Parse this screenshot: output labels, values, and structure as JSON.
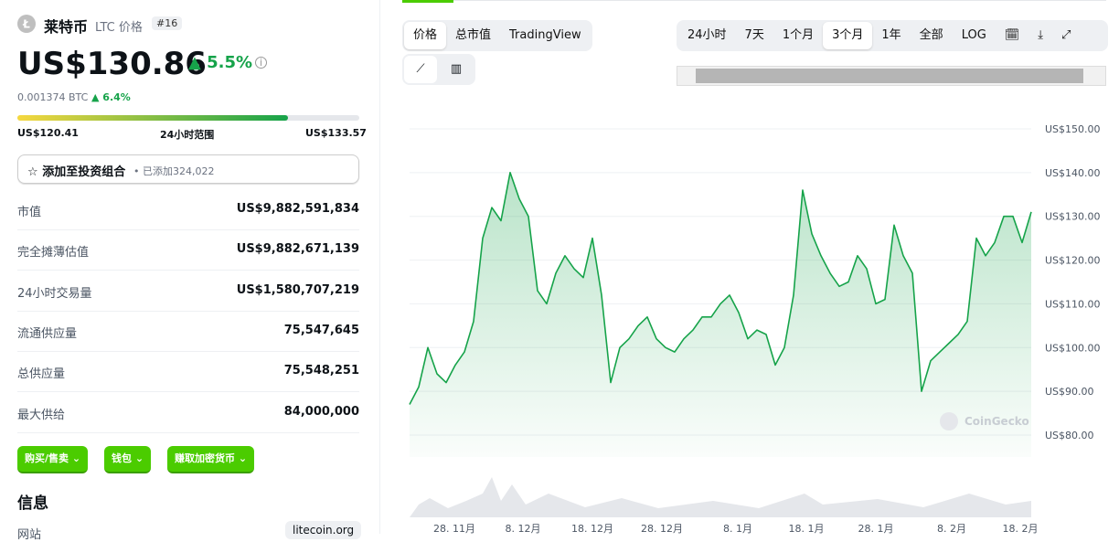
{
  "coin": {
    "name": "莱特币",
    "symbol": "LTC 价格",
    "rank": "#16",
    "price": "US$130.86",
    "change": "5.5%",
    "btc_price": "0.001374 BTC",
    "btc_change": "6.4%",
    "range": {
      "low": "US$120.41",
      "label": "24小时范围",
      "high": "US$133.57"
    },
    "portfolio": {
      "label": "添加至投资组合",
      "added": "• 已添加324,022"
    },
    "stats": [
      {
        "label": "市值",
        "value": "US$9,882,591,834"
      },
      {
        "label": "完全摊薄估值",
        "value": "US$9,882,671,139"
      },
      {
        "label": "24小时交易量",
        "value": "US$1,580,707,219"
      },
      {
        "label": "流通供应量",
        "value": "75,547,645"
      },
      {
        "label": "总供应量",
        "value": "75,548,251"
      },
      {
        "label": "最大供给",
        "value": "84,000,000"
      }
    ],
    "buttons": [
      "购买/售卖",
      "钱包",
      "赚取加密货币"
    ],
    "info": {
      "title": "信息",
      "website_label": "网站",
      "website": "litecoin.org"
    }
  },
  "tabs": [
    "价格",
    "总市值",
    "TradingView"
  ],
  "ranges": [
    "24小时",
    "7天",
    "1个月",
    "3个月",
    "1年",
    "全部",
    "LOG"
  ],
  "price_chart": {
    "type": "line",
    "color": "#16a34a",
    "watermark": "CoinGecko",
    "ylim": [
      75,
      157
    ],
    "yticks": [
      {
        "value": 150,
        "label": "US$150.00"
      },
      {
        "value": 140,
        "label": "US$140.00"
      },
      {
        "value": 130,
        "label": "US$130.00"
      },
      {
        "value": 120,
        "label": "US$120.00"
      },
      {
        "value": 110,
        "label": "US$110.00"
      },
      {
        "value": 100,
        "label": "US$100.00"
      },
      {
        "value": 90,
        "label": "US$90.00"
      },
      {
        "value": 80,
        "label": "US$80.00"
      }
    ],
    "x_labels": [
      "28. 11月",
      "8. 12月",
      "18. 12月",
      "28. 12月",
      "8. 1月",
      "18. 1月",
      "28. 1月",
      "8. 2月",
      "18. 2月"
    ],
    "values": [
      87,
      91,
      100,
      94,
      92,
      96,
      99,
      106,
      125,
      132,
      129,
      140,
      134,
      130,
      113,
      110,
      117,
      121,
      118,
      116,
      125,
      112,
      92,
      100,
      102,
      105,
      107,
      102,
      100,
      99,
      102,
      104,
      107,
      107,
      110,
      112,
      108,
      102,
      104,
      103,
      96,
      100,
      112,
      136,
      126,
      121,
      117,
      114,
      115,
      121,
      118,
      110,
      111,
      128,
      121,
      117,
      90,
      97,
      99,
      101,
      103,
      106,
      125,
      121,
      124,
      130,
      130,
      124,
      131
    ]
  }
}
